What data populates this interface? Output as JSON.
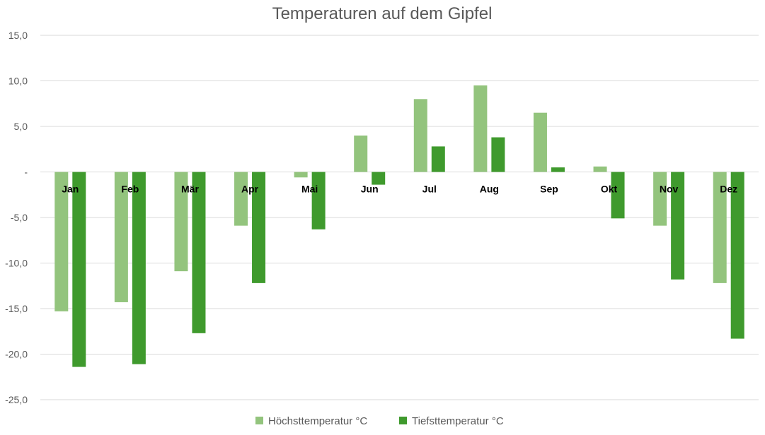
{
  "chart_data": {
    "type": "bar",
    "title": "Temperaturen auf dem Gipfel",
    "xlabel": "",
    "ylabel": "",
    "categories": [
      "Jan",
      "Feb",
      "Mär",
      "Apr",
      "Mai",
      "Jun",
      "Jul",
      "Aug",
      "Sep",
      "Okt",
      "Nov",
      "Dez"
    ],
    "series": [
      {
        "name": "Höchsttemperatur °C",
        "color": "#93c47d",
        "values": [
          -15.3,
          -14.3,
          -10.9,
          -5.9,
          -0.6,
          4.0,
          8.0,
          9.5,
          6.5,
          0.6,
          -5.9,
          -12.2
        ]
      },
      {
        "name": "Tiefsttemperatur °C",
        "color": "#3f9a2d",
        "values": [
          -21.4,
          -21.1,
          -17.7,
          -12.2,
          -6.3,
          -1.4,
          2.8,
          3.8,
          0.5,
          -5.1,
          -11.8,
          -18.3
        ]
      }
    ],
    "ylim": [
      -25,
      15
    ],
    "y_ticks": [
      15,
      10,
      5,
      0,
      -5,
      -10,
      -15,
      -20,
      -25
    ],
    "y_tick_labels": [
      "15,0",
      "10,0",
      "5,0",
      "-",
      "-5,0",
      "-10,0",
      "-15,0",
      "-20,0",
      "-25,0"
    ],
    "grid": true,
    "legend_position": "bottom",
    "category_labels_position": "at zero line"
  }
}
